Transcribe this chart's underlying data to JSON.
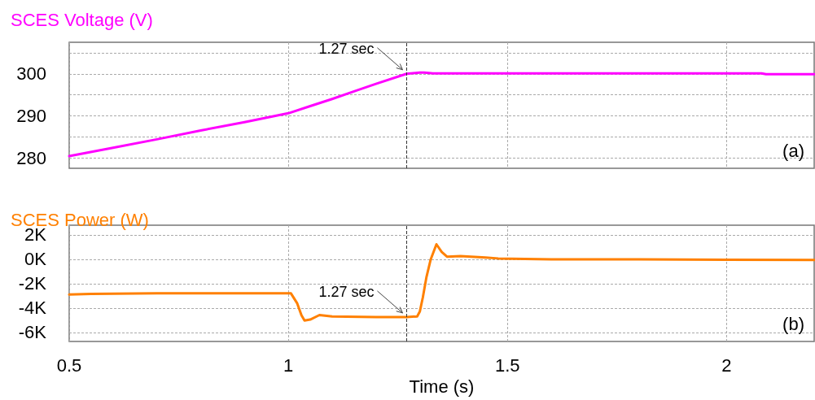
{
  "chart_data": [
    {
      "type": "line",
      "title": "SCES Voltage (V)",
      "annotations": [
        {
          "text": "1.27 sec",
          "x": 1.27,
          "y": 300
        },
        "(a)"
      ],
      "x": [
        0.5,
        0.6,
        0.7,
        0.8,
        0.9,
        1.0,
        1.05,
        1.1,
        1.15,
        1.2,
        1.27,
        1.3,
        1.31,
        1.33,
        1.5,
        1.8,
        2.08,
        2.09,
        2.2
      ],
      "series": [
        {
          "color": "#ff00ff",
          "values": [
            280.4,
            282.4,
            284.4,
            286.5,
            288.5,
            290.6,
            292.3,
            294.0,
            295.8,
            297.6,
            300,
            300.3,
            300.3,
            300.1,
            300.1,
            300.1,
            300.1,
            299.9,
            299.9
          ]
        }
      ],
      "xlim": [
        0.5,
        2.2
      ],
      "xticks": [
        0.5,
        1,
        1.5,
        2
      ],
      "ylim": [
        277.5,
        307.5
      ],
      "yticks": [
        280,
        {
          "value": 285,
          "label": null
        },
        290,
        {
          "value": 295,
          "label": null
        },
        300,
        {
          "value": 305,
          "label": null
        }
      ],
      "ref_lines": [
        {
          "axis": "x",
          "value": 1.27,
          "color": "#333333",
          "line_style": "dashed"
        }
      ],
      "grid": true,
      "tick_labels": "y",
      "marker": "none",
      "line_style": "solid"
    },
    {
      "type": "line",
      "title": "SCES Power (W)",
      "xlabel": "Time (s)",
      "annotations": [
        {
          "text": "1.27 sec",
          "x": 1.27,
          "y": -4740
        },
        "(b)"
      ],
      "x": [
        0.5,
        0.55,
        0.6,
        0.7,
        0.8,
        0.9,
        1.0,
        1.006,
        1.02,
        1.03,
        1.037,
        1.05,
        1.071,
        1.1,
        1.2,
        1.27,
        1.294,
        1.3,
        1.307,
        1.315,
        1.325,
        1.338,
        1.35,
        1.362,
        1.393,
        1.45,
        1.479,
        1.6,
        1.8,
        2.0,
        2.2
      ],
      "series": [
        {
          "color": "#ff8000",
          "values": [
            -2900,
            -2850,
            -2820,
            -2800,
            -2800,
            -2800,
            -2800,
            -2800,
            -3600,
            -4600,
            -5030,
            -4950,
            -4580,
            -4700,
            -4740,
            -4740,
            -4690,
            -4300,
            -3130,
            -1500,
            0,
            1230,
            600,
            220,
            270,
            150,
            70,
            0,
            0,
            -30,
            -50
          ]
        }
      ],
      "xlim": [
        0.5,
        2.2
      ],
      "xticks": [
        0.5,
        1,
        1.5,
        2
      ],
      "ylim": [
        -6750,
        2800
      ],
      "yticks": [
        {
          "value": 2000,
          "label": "2K"
        },
        {
          "value": 0,
          "label": "0K"
        },
        {
          "value": -2000,
          "label": "-2K"
        },
        {
          "value": -4000,
          "label": "-4K"
        },
        {
          "value": -6000,
          "label": "-6K"
        }
      ],
      "ref_lines": [
        {
          "axis": "x",
          "value": 1.27,
          "color": "#333333",
          "line_style": "dashed"
        }
      ],
      "grid": true,
      "marker": "none",
      "line_style": "solid"
    }
  ]
}
